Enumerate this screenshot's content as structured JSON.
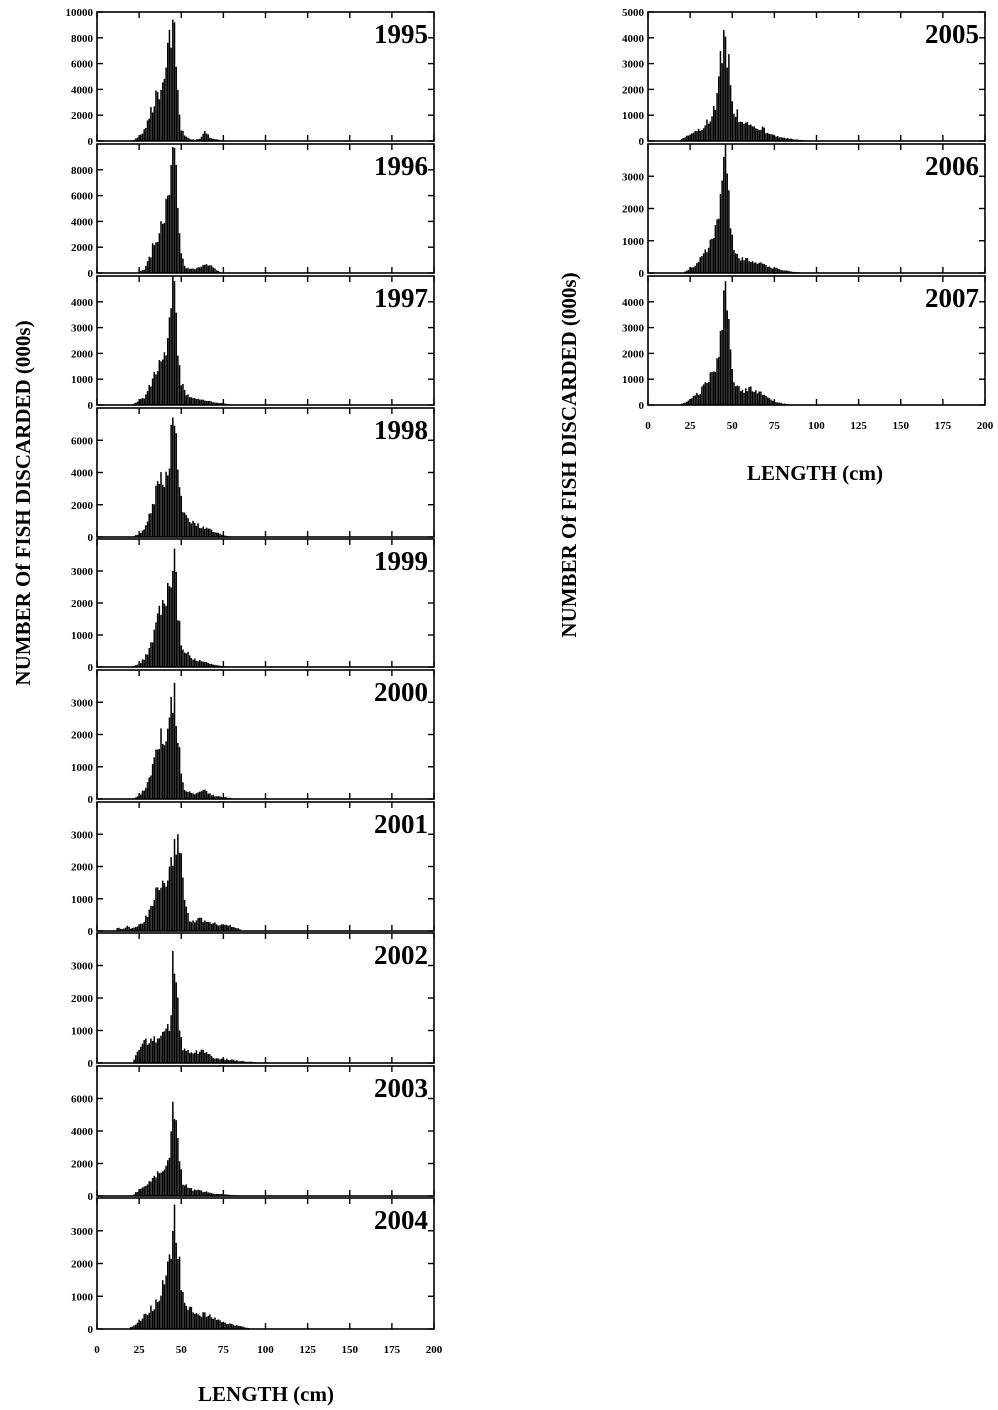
{
  "figure": {
    "ylabel": "NUMBER Of FISH DISCARDED (000s)",
    "xlabel": "LENGTH (cm)",
    "xlim": [
      0,
      200
    ],
    "xticks": [
      0,
      25,
      50,
      75,
      100,
      125,
      150,
      175,
      200
    ]
  },
  "chart_data": [
    {
      "type": "bar",
      "title": "1995",
      "xlabel": "",
      "ylabel": "NUMBER Of FISH DISCARDED (000s)",
      "ylim": [
        0,
        10000
      ],
      "yticks": [
        0,
        2000,
        4000,
        6000,
        8000,
        10000
      ],
      "peak": {
        "x": 46,
        "y": 9200
      },
      "x": [
        22,
        25,
        28,
        30,
        32,
        34,
        36,
        38,
        40,
        42,
        44,
        46,
        48,
        50,
        52,
        55,
        58,
        61,
        64,
        67,
        70,
        75
      ],
      "values": [
        100,
        300,
        900,
        1600,
        2200,
        3200,
        3700,
        4000,
        5000,
        7100,
        8200,
        9200,
        3500,
        1000,
        400,
        150,
        100,
        200,
        800,
        300,
        150,
        50
      ]
    },
    {
      "type": "bar",
      "title": "1996",
      "xlabel": "",
      "ylabel": "NUMBER Of FISH DISCARDED (000s)",
      "ylim": [
        0,
        10000
      ],
      "yticks": [
        0,
        2000,
        4000,
        6000,
        8000
      ],
      "peak": {
        "x": 46,
        "y": 9700
      },
      "x": [
        25,
        28,
        30,
        32,
        34,
        36,
        38,
        40,
        42,
        44,
        46,
        48,
        50,
        52,
        55,
        58,
        61,
        64,
        67,
        70,
        73
      ],
      "values": [
        100,
        300,
        800,
        1500,
        2500,
        3000,
        3500,
        4500,
        6500,
        8000,
        9700,
        4500,
        1500,
        500,
        300,
        300,
        500,
        700,
        600,
        300,
        100
      ]
    },
    {
      "type": "bar",
      "title": "1997",
      "xlabel": "",
      "ylabel": "NUMBER Of FISH DISCARDED (000s)",
      "ylim": [
        0,
        5000
      ],
      "yticks": [
        0,
        1000,
        2000,
        3000,
        4000
      ],
      "peak": {
        "x": 46,
        "y": 4800
      },
      "x": [
        22,
        25,
        28,
        30,
        32,
        34,
        36,
        38,
        40,
        42,
        44,
        46,
        48,
        50,
        52,
        55,
        58,
        61,
        64,
        67,
        70,
        75,
        80
      ],
      "values": [
        50,
        150,
        300,
        500,
        800,
        1200,
        1500,
        1800,
        2000,
        2800,
        3800,
        4800,
        2200,
        900,
        500,
        350,
        250,
        200,
        180,
        150,
        100,
        60,
        20
      ]
    },
    {
      "type": "bar",
      "title": "1998",
      "xlabel": "",
      "ylabel": "NUMBER Of FISH DISCARDED (000s)",
      "ylim": [
        0,
        8000
      ],
      "yticks": [
        0,
        2000,
        4000,
        6000
      ],
      "peak": {
        "x": 46,
        "y": 6900
      },
      "x": [
        22,
        25,
        28,
        30,
        32,
        34,
        36,
        38,
        40,
        42,
        44,
        46,
        48,
        50,
        52,
        55,
        58,
        61,
        64,
        67,
        70,
        75,
        80
      ],
      "values": [
        50,
        200,
        500,
        900,
        1600,
        2500,
        3200,
        3500,
        3600,
        4500,
        6000,
        6900,
        4000,
        2200,
        1400,
        1000,
        800,
        700,
        600,
        500,
        300,
        100,
        30
      ]
    },
    {
      "type": "bar",
      "title": "1999",
      "xlabel": "",
      "ylabel": "NUMBER Of FISH DISCARDED (000s)",
      "ylim": [
        0,
        4000
      ],
      "yticks": [
        0,
        1000,
        2000,
        3000
      ],
      "peak": {
        "x": 46,
        "y": 3700
      },
      "x": [
        22,
        25,
        28,
        30,
        32,
        34,
        36,
        38,
        40,
        42,
        44,
        46,
        48,
        50,
        52,
        55,
        58,
        61,
        64,
        67,
        70,
        75,
        80
      ],
      "values": [
        30,
        100,
        250,
        450,
        700,
        1000,
        1500,
        1700,
        1800,
        2300,
        2600,
        3700,
        1800,
        800,
        500,
        350,
        250,
        200,
        150,
        100,
        60,
        30,
        10
      ]
    },
    {
      "type": "bar",
      "title": "2000",
      "xlabel": "",
      "ylabel": "NUMBER Of FISH DISCARDED (000s)",
      "ylim": [
        0,
        4000
      ],
      "yticks": [
        0,
        1000,
        2000,
        3000
      ],
      "peak": {
        "x": 46,
        "y": 3600
      },
      "x": [
        22,
        25,
        28,
        30,
        32,
        34,
        36,
        38,
        40,
        42,
        44,
        46,
        48,
        50,
        52,
        55,
        58,
        61,
        64,
        67,
        70,
        75,
        80
      ],
      "values": [
        30,
        100,
        300,
        500,
        800,
        1100,
        1500,
        1900,
        1900,
        2100,
        3000,
        3600,
        2000,
        700,
        300,
        200,
        150,
        250,
        250,
        150,
        100,
        60,
        30
      ]
    },
    {
      "type": "bar",
      "title": "2001",
      "xlabel": "",
      "ylabel": "NUMBER Of FISH DISCARDED (000s)",
      "ylim": [
        0,
        4000
      ],
      "yticks": [
        0,
        1000,
        2000,
        3000
      ],
      "peak": {
        "x": 48,
        "y": 3000
      },
      "x": [
        12,
        15,
        18,
        20,
        22,
        25,
        28,
        30,
        32,
        34,
        36,
        38,
        40,
        42,
        44,
        46,
        48,
        50,
        52,
        55,
        58,
        61,
        64,
        67,
        70,
        73,
        76,
        80,
        85
      ],
      "values": [
        100,
        50,
        150,
        80,
        120,
        200,
        300,
        500,
        700,
        1000,
        1400,
        1600,
        1500,
        1800,
        2200,
        2700,
        3000,
        2400,
        900,
        350,
        300,
        400,
        300,
        250,
        220,
        200,
        200,
        150,
        50
      ]
    },
    {
      "type": "bar",
      "title": "2002",
      "xlabel": "",
      "ylabel": "NUMBER Of FISH DISCARDED (000s)",
      "ylim": [
        0,
        4000
      ],
      "yticks": [
        0,
        1000,
        2000,
        3000
      ],
      "peak": {
        "x": 45,
        "y": 3450
      },
      "x": [
        22,
        25,
        27,
        30,
        32,
        34,
        36,
        38,
        40,
        42,
        44,
        45,
        47,
        49,
        51,
        54,
        57,
        60,
        63,
        66,
        70,
        75,
        80,
        85,
        90,
        95
      ],
      "values": [
        100,
        400,
        600,
        700,
        650,
        700,
        750,
        800,
        900,
        1000,
        1300,
        3450,
        2900,
        900,
        450,
        350,
        300,
        350,
        350,
        250,
        150,
        120,
        100,
        60,
        40,
        20
      ]
    },
    {
      "type": "bar",
      "title": "2003",
      "xlabel": "",
      "ylabel": "NUMBER Of FISH DISCARDED (000s)",
      "ylim": [
        0,
        8000
      ],
      "yticks": [
        0,
        2000,
        4000,
        6000
      ],
      "peak": {
        "x": 45,
        "y": 5800
      },
      "x": [
        22,
        25,
        28,
        30,
        32,
        34,
        36,
        38,
        40,
        42,
        44,
        45,
        47,
        49,
        51,
        54,
        57,
        60,
        63,
        66,
        70,
        75,
        80,
        85,
        90
      ],
      "values": [
        100,
        400,
        600,
        800,
        900,
        1100,
        1300,
        1500,
        1800,
        2200,
        3500,
        5800,
        5000,
        2000,
        800,
        500,
        400,
        350,
        300,
        250,
        150,
        100,
        60,
        30,
        10
      ]
    },
    {
      "type": "bar",
      "title": "2004",
      "xlabel": "",
      "ylabel": "NUMBER Of FISH DISCARDED (000s)",
      "ylim": [
        0,
        4000
      ],
      "yticks": [
        0,
        1000,
        2000,
        3000
      ],
      "peak": {
        "x": 46,
        "y": 3800
      },
      "x": [
        20,
        23,
        26,
        28,
        30,
        32,
        34,
        36,
        38,
        40,
        42,
        44,
        46,
        48,
        50,
        52,
        55,
        58,
        61,
        64,
        67,
        70,
        73,
        76,
        80,
        85,
        90
      ],
      "values": [
        50,
        150,
        300,
        400,
        500,
        600,
        700,
        900,
        1100,
        1400,
        1800,
        2300,
        3800,
        2600,
        1200,
        700,
        600,
        500,
        450,
        450,
        400,
        300,
        250,
        200,
        150,
        80,
        30
      ]
    },
    {
      "type": "bar",
      "title": "2005",
      "xlabel": "",
      "ylabel": "NUMBER Of FISH DISCARDED (000s)",
      "ylim": [
        0,
        5000
      ],
      "yticks": [
        0,
        1000,
        2000,
        3000,
        4000,
        5000
      ],
      "peak": {
        "x": 45,
        "y": 4300
      },
      "x": [
        20,
        22,
        24,
        26,
        28,
        30,
        32,
        34,
        36,
        38,
        40,
        42,
        43,
        45,
        47,
        49,
        51,
        54,
        57,
        60,
        63,
        66,
        68,
        70,
        75,
        80,
        85,
        90,
        95
      ],
      "values": [
        80,
        150,
        250,
        300,
        350,
        400,
        500,
        600,
        800,
        1000,
        1400,
        2200,
        3200,
        4300,
        3500,
        2200,
        1300,
        900,
        700,
        600,
        500,
        400,
        600,
        300,
        200,
        120,
        80,
        40,
        20
      ]
    },
    {
      "type": "bar",
      "title": "2006",
      "xlabel": "",
      "ylabel": "NUMBER Of FISH DISCARDED (000s)",
      "ylim": [
        0,
        4000
      ],
      "yticks": [
        0,
        1000,
        2000,
        3000
      ],
      "peak": {
        "x": 45,
        "y": 3600
      },
      "x": [
        22,
        25,
        28,
        30,
        32,
        34,
        36,
        38,
        40,
        42,
        43,
        45,
        47,
        49,
        51,
        54,
        57,
        60,
        63,
        66,
        70,
        75,
        80,
        85,
        90
      ],
      "values": [
        50,
        150,
        250,
        350,
        500,
        700,
        900,
        1100,
        1300,
        1800,
        2600,
        3600,
        3100,
        1600,
        800,
        500,
        450,
        400,
        350,
        300,
        220,
        150,
        100,
        50,
        20
      ]
    },
    {
      "type": "bar",
      "title": "2007",
      "xlabel": "",
      "ylabel": "NUMBER Of FISH DISCARDED (000s)",
      "ylim": [
        0,
        5000
      ],
      "yticks": [
        0,
        1000,
        2000,
        3000,
        4000
      ],
      "peak": {
        "x": 46,
        "y": 4800
      },
      "x": [
        20,
        23,
        26,
        28,
        30,
        32,
        34,
        36,
        38,
        40,
        42,
        44,
        46,
        48,
        50,
        52,
        55,
        58,
        61,
        64,
        67,
        70,
        73,
        76,
        80,
        85
      ],
      "values": [
        50,
        150,
        250,
        350,
        450,
        600,
        800,
        1000,
        1200,
        1500,
        2000,
        3000,
        4800,
        3700,
        1400,
        800,
        600,
        550,
        600,
        550,
        450,
        300,
        200,
        120,
        60,
        20
      ]
    }
  ]
}
